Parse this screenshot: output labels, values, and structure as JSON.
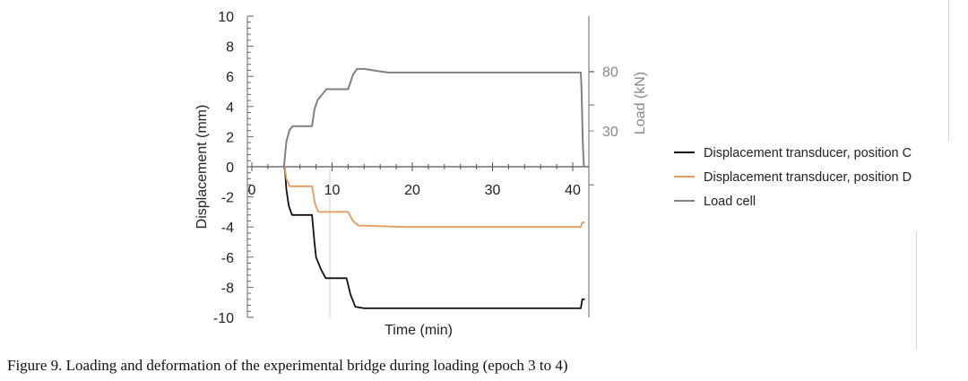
{
  "caption": "Figure 9. Loading and deformation of the experimental bridge during loading (epoch 3 to 4)",
  "chart_data": {
    "type": "line",
    "xlabel": "Time (min)",
    "ylabel": "Displacement (mm)",
    "y2label": "Load (kN)",
    "xlim": [
      -0.5,
      41.5
    ],
    "ylim": [
      -10,
      10
    ],
    "y2_visible_range": [
      0,
      115
    ],
    "x_ticks": [
      "0",
      "10",
      "20",
      "30",
      "40"
    ],
    "y_ticks": [
      "10",
      "8",
      "6",
      "4",
      "2",
      "0",
      "-2",
      "-4",
      "-6",
      "-8",
      "-10"
    ],
    "y2_ticks": [
      "80",
      "30"
    ],
    "legend_position": "right",
    "grid": false,
    "series": [
      {
        "name": "Displacement transducer, position C",
        "color": "#111111",
        "axis": "left",
        "points": [
          [
            4.1,
            0
          ],
          [
            4.3,
            -1.5
          ],
          [
            4.6,
            -2.6
          ],
          [
            5.0,
            -3.2
          ],
          [
            7.5,
            -3.2
          ],
          [
            7.8,
            -5.0
          ],
          [
            8.0,
            -6.0
          ],
          [
            8.6,
            -6.8
          ],
          [
            9.2,
            -7.4
          ],
          [
            11.8,
            -7.4
          ],
          [
            12.3,
            -8.5
          ],
          [
            12.9,
            -9.3
          ],
          [
            14.0,
            -9.4
          ],
          [
            41.0,
            -9.4
          ],
          [
            41.2,
            -8.8
          ],
          [
            41.5,
            -8.8
          ]
        ]
      },
      {
        "name": "Displacement transducer, position D",
        "color": "#e39b5c",
        "axis": "left",
        "points": [
          [
            4.1,
            0
          ],
          [
            4.3,
            -0.8
          ],
          [
            4.7,
            -1.3
          ],
          [
            7.5,
            -1.3
          ],
          [
            7.9,
            -2.5
          ],
          [
            8.3,
            -3.0
          ],
          [
            12.0,
            -3.0
          ],
          [
            12.6,
            -3.6
          ],
          [
            13.3,
            -3.9
          ],
          [
            19.0,
            -4.0
          ],
          [
            41.0,
            -4.0
          ],
          [
            41.2,
            -3.7
          ],
          [
            41.5,
            -3.7
          ]
        ]
      },
      {
        "name": "Load cell",
        "color": "#808080",
        "axis": "right",
        "points": [
          [
            4.0,
            0
          ],
          [
            4.3,
            21
          ],
          [
            4.7,
            31
          ],
          [
            5.1,
            34
          ],
          [
            7.5,
            34
          ],
          [
            7.8,
            48
          ],
          [
            8.2,
            56
          ],
          [
            8.8,
            61
          ],
          [
            9.3,
            65
          ],
          [
            12.0,
            65
          ],
          [
            12.6,
            77
          ],
          [
            13.1,
            82
          ],
          [
            14.0,
            82
          ],
          [
            16.0,
            80
          ],
          [
            17.0,
            79
          ],
          [
            41.0,
            79
          ],
          [
            41.1,
            66
          ],
          [
            41.25,
            20
          ],
          [
            41.4,
            0
          ]
        ]
      }
    ]
  }
}
